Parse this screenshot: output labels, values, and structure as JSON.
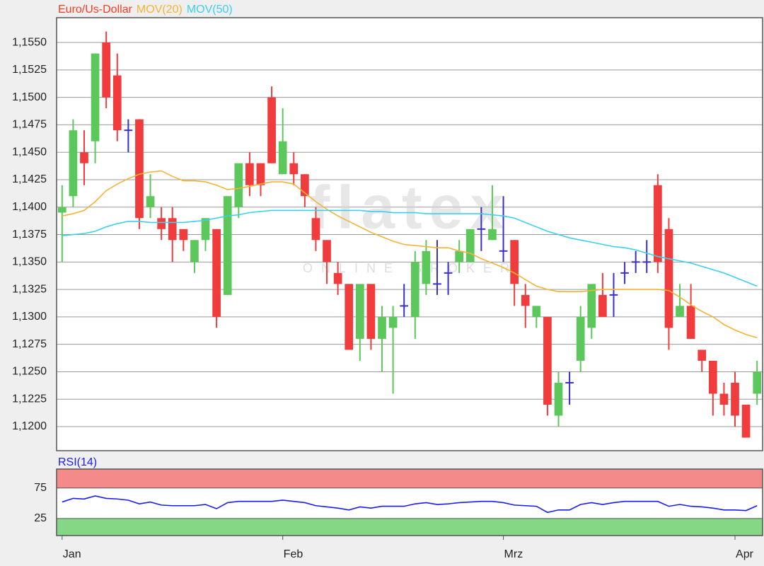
{
  "chart_data": [
    {
      "type": "candlestick",
      "series": [
        {
          "name": "Euro/Us-Dollar",
          "color": "#ff3b1f",
          "open": [
            1.1395,
            1.141,
            1.145,
            1.146,
            1.155,
            1.152,
            1.147,
            1.148,
            1.14,
            1.139,
            1.139,
            1.138,
            1.135,
            1.137,
            1.138,
            1.132,
            1.14,
            1.144,
            1.144,
            1.15,
            1.143,
            1.144,
            1.143,
            1.139,
            1.137,
            1.134,
            1.133,
            1.128,
            1.133,
            1.128,
            1.129,
            1.131,
            1.13,
            1.133,
            1.133,
            1.134,
            1.135,
            1.135,
            1.138,
            1.137,
            1.136,
            1.137,
            1.132,
            1.13,
            1.13,
            1.121,
            1.124,
            1.126,
            1.129,
            1.132,
            1.132,
            1.134,
            1.135,
            1.135,
            1.142,
            1.138,
            1.13,
            1.131,
            1.127,
            1.126,
            1.123,
            1.124,
            1.122,
            1.123
          ],
          "high": [
            1.142,
            1.148,
            1.147,
            1.154,
            1.156,
            1.154,
            1.148,
            1.148,
            1.143,
            1.14,
            1.14,
            1.138,
            1.137,
            1.139,
            1.138,
            1.141,
            1.144,
            1.145,
            1.144,
            1.151,
            1.149,
            1.145,
            1.143,
            1.14,
            1.137,
            1.135,
            1.133,
            1.133,
            1.133,
            1.131,
            1.131,
            1.133,
            1.136,
            1.137,
            1.137,
            1.135,
            1.137,
            1.138,
            1.14,
            1.142,
            1.141,
            1.137,
            1.133,
            1.131,
            1.13,
            1.125,
            1.125,
            1.131,
            1.133,
            1.134,
            1.134,
            1.135,
            1.136,
            1.137,
            1.143,
            1.139,
            1.133,
            1.133,
            1.127,
            1.126,
            1.124,
            1.125,
            1.122,
            1.126
          ],
          "low": [
            1.135,
            1.14,
            1.142,
            1.144,
            1.149,
            1.146,
            1.145,
            1.138,
            1.139,
            1.137,
            1.135,
            1.136,
            1.134,
            1.136,
            1.129,
            1.132,
            1.139,
            1.141,
            1.141,
            1.144,
            1.143,
            1.142,
            1.14,
            1.136,
            1.133,
            1.132,
            1.127,
            1.126,
            1.127,
            1.125,
            1.123,
            1.13,
            1.128,
            1.132,
            1.132,
            1.132,
            1.134,
            1.135,
            1.136,
            1.137,
            1.135,
            1.131,
            1.129,
            1.129,
            1.121,
            1.12,
            1.122,
            1.125,
            1.128,
            1.13,
            1.13,
            1.133,
            1.134,
            1.134,
            1.134,
            1.127,
            1.13,
            1.128,
            1.125,
            1.121,
            1.121,
            1.12,
            1.119,
            1.122
          ],
          "close": [
            1.14,
            1.147,
            1.144,
            1.154,
            1.15,
            1.147,
            1.147,
            1.139,
            1.141,
            1.138,
            1.137,
            1.137,
            1.137,
            1.139,
            1.13,
            1.141,
            1.144,
            1.142,
            1.142,
            1.144,
            1.146,
            1.143,
            1.141,
            1.137,
            1.135,
            1.133,
            1.127,
            1.133,
            1.128,
            1.13,
            1.13,
            1.131,
            1.135,
            1.136,
            1.133,
            1.134,
            1.136,
            1.138,
            1.138,
            1.138,
            1.136,
            1.133,
            1.131,
            1.131,
            1.122,
            1.124,
            1.124,
            1.13,
            1.133,
            1.13,
            1.132,
            1.134,
            1.135,
            1.135,
            1.135,
            1.129,
            1.131,
            1.128,
            1.126,
            1.123,
            1.122,
            1.121,
            1.119,
            1.125
          ]
        },
        {
          "name": "MOV(20)",
          "color": "#f5b335",
          "values": [
            1.1392,
            1.1394,
            1.1397,
            1.1405,
            1.1415,
            1.1421,
            1.1426,
            1.143,
            1.1432,
            1.1433,
            1.1428,
            1.1424,
            1.1424,
            1.1423,
            1.142,
            1.1416,
            1.1417,
            1.1419,
            1.1421,
            1.1423,
            1.1423,
            1.1421,
            1.1413,
            1.1405,
            1.1398,
            1.1392,
            1.1387,
            1.1382,
            1.1377,
            1.1373,
            1.1369,
            1.1366,
            1.1365,
            1.1364,
            1.1363,
            1.1363,
            1.136,
            1.1358,
            1.1353,
            1.1349,
            1.1345,
            1.134,
            1.1334,
            1.1328,
            1.1325,
            1.1323,
            1.1323,
            1.1323,
            1.1324,
            1.1325,
            1.1325,
            1.1325,
            1.1325,
            1.1325,
            1.1325,
            1.1324,
            1.1318,
            1.1311,
            1.1305,
            1.13,
            1.1293,
            1.1288,
            1.1284,
            1.1281
          ]
        },
        {
          "name": "MOV(50)",
          "color": "#3ad0f0",
          "values": [
            1.1374,
            1.1375,
            1.1376,
            1.1378,
            1.1382,
            1.1385,
            1.1387,
            1.1387,
            1.1386,
            1.1386,
            1.1386,
            1.1386,
            1.1387,
            1.1388,
            1.139,
            1.1392,
            1.1393,
            1.1395,
            1.1396,
            1.1397,
            1.1397,
            1.1397,
            1.1397,
            1.1397,
            1.1397,
            1.1397,
            1.1397,
            1.1397,
            1.1396,
            1.1396,
            1.1395,
            1.1395,
            1.1395,
            1.1394,
            1.1394,
            1.1394,
            1.1394,
            1.1394,
            1.1394,
            1.1393,
            1.1392,
            1.139,
            1.1386,
            1.1382,
            1.1378,
            1.1375,
            1.1372,
            1.137,
            1.1368,
            1.1366,
            1.1364,
            1.1363,
            1.1361,
            1.1358,
            1.1355,
            1.1353,
            1.1351,
            1.1349,
            1.1346,
            1.1343,
            1.134,
            1.1336,
            1.1332,
            1.1328
          ]
        }
      ],
      "up_color": "#5cc85c",
      "down_color": "#f03c3c",
      "flat_color": "#3a2fc8",
      "ylim": [
        1.11781,
        1.15726
      ],
      "yticks": [
        {
          "value": 1.12,
          "label": "1,1200"
        },
        {
          "value": 1.1225,
          "label": "1,1225"
        },
        {
          "value": 1.125,
          "label": "1,1250"
        },
        {
          "value": 1.1275,
          "label": "1,1275"
        },
        {
          "value": 1.13,
          "label": "1,1300"
        },
        {
          "value": 1.1325,
          "label": "1,1325"
        },
        {
          "value": 1.135,
          "label": "1,1350"
        },
        {
          "value": 1.1375,
          "label": "1,1375"
        },
        {
          "value": 1.14,
          "label": "1,1400"
        },
        {
          "value": 1.1425,
          "label": "1,1425"
        },
        {
          "value": 1.145,
          "label": "1,1450"
        },
        {
          "value": 1.1475,
          "label": "1,1475"
        },
        {
          "value": 1.15,
          "label": "1,1500"
        },
        {
          "value": 1.1525,
          "label": "1,1525"
        },
        {
          "value": 1.155,
          "label": "1,1550"
        }
      ],
      "grid": true,
      "watermark": {
        "title": "flatex",
        "subtitle": "ONLINE BROKER"
      }
    },
    {
      "type": "line",
      "categories": [
        "Jan",
        null,
        null,
        null,
        null,
        null,
        null,
        null,
        null,
        null,
        null,
        null,
        null,
        null,
        null,
        null,
        null,
        null,
        null,
        null,
        "Feb",
        null,
        null,
        null,
        null,
        null,
        null,
        null,
        null,
        null,
        null,
        null,
        null,
        null,
        null,
        null,
        null,
        null,
        null,
        null,
        "Mrz",
        null,
        null,
        null,
        null,
        null,
        null,
        null,
        null,
        null,
        null,
        null,
        null,
        null,
        null,
        null,
        null,
        null,
        null,
        null,
        null,
        "Apr",
        null,
        null
      ],
      "series": [
        {
          "name": "RSI(14)",
          "color": "#1a1aff",
          "values": [
            52,
            58,
            57,
            62,
            58,
            57,
            55,
            49,
            52,
            47,
            46,
            46,
            46,
            48,
            41,
            51,
            53,
            53,
            53,
            53,
            55,
            53,
            51,
            46,
            44,
            42,
            39,
            44,
            42,
            45,
            45,
            45,
            49,
            51,
            48,
            49,
            51,
            52,
            53,
            53,
            51,
            47,
            46,
            45,
            35,
            39,
            39,
            48,
            51,
            48,
            51,
            53,
            53,
            53,
            53,
            45,
            48,
            45,
            44,
            42,
            39,
            39,
            38,
            46
          ]
        }
      ],
      "ylim": [
        -3,
        106
      ],
      "yticks": [
        75,
        25
      ],
      "band_colors": [
        "#f58a8a",
        "#85d685"
      ]
    }
  ]
}
